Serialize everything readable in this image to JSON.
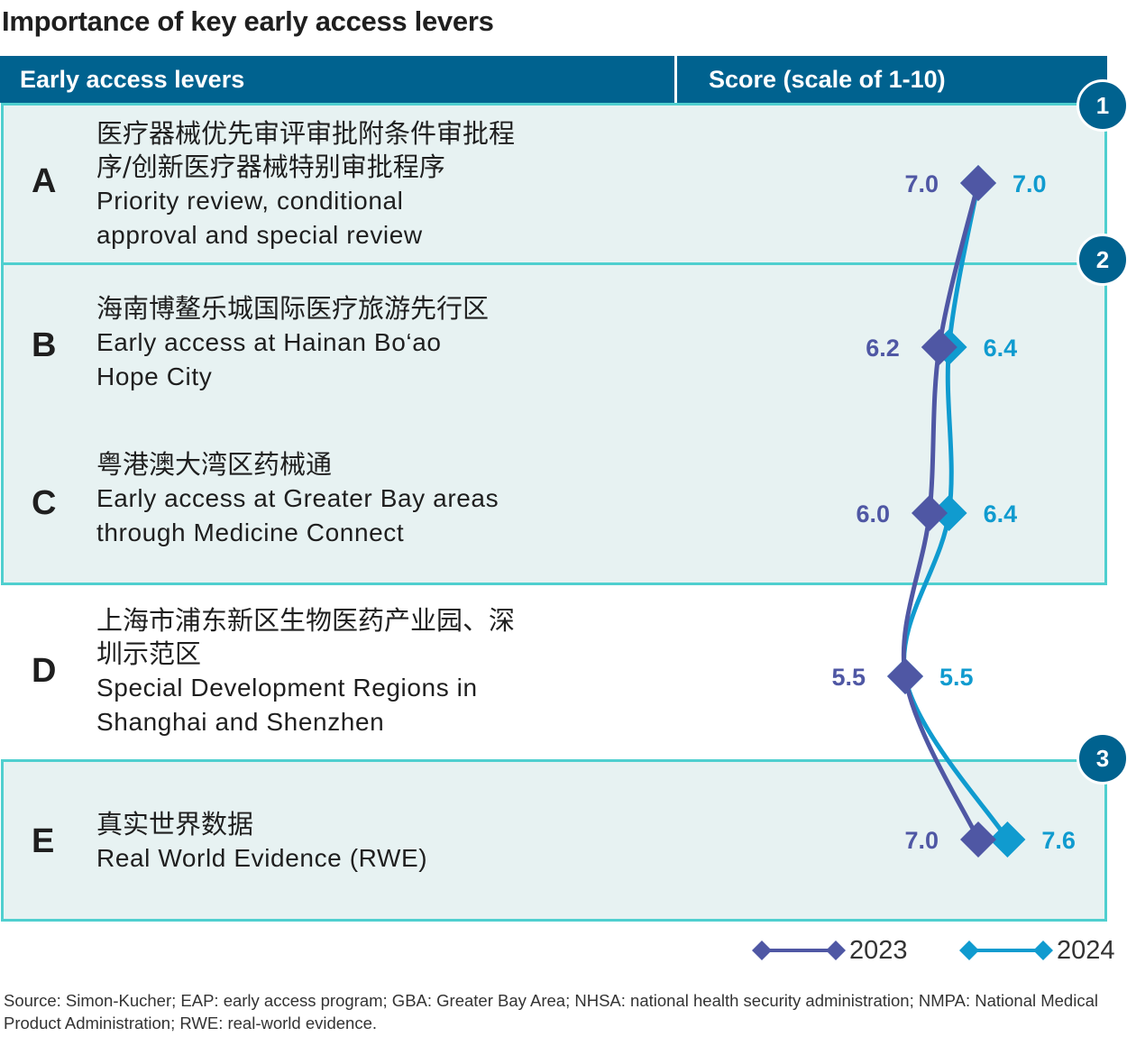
{
  "title": "Importance of key early access levers",
  "header": {
    "col1": "Early access levers",
    "col2": "Score (scale of 1-10)"
  },
  "badges": [
    "1",
    "2",
    "3"
  ],
  "rows": [
    {
      "letter": "A",
      "cn": "医疗器械优先审评审批附条件审批程序/创新医疗器械特别审批程序",
      "en": "Priority review, conditional approval and special review"
    },
    {
      "letter": "B",
      "cn": "海南博鳌乐城国际医疗旅游先行区",
      "en": "Early access at Hainan Bo‘ao Hope City"
    },
    {
      "letter": "C",
      "cn": "粤港澳大湾区药械通",
      "en": "Early access at Greater Bay areas through Medicine Connect"
    },
    {
      "letter": "D",
      "cn": "上海市浦东新区生物医药产业园、深圳示范区",
      "en": "Special Development Regions in Shanghai and Shenzhen"
    },
    {
      "letter": "E",
      "cn": "真实世界数据",
      "en": "Real World Evidence (RWE)"
    }
  ],
  "chart_data": {
    "type": "line",
    "orientation": "vertical-categories",
    "title": "Importance of key early access levers",
    "xlabel": "Score (scale of 1-10)",
    "categories": [
      "A",
      "B",
      "C",
      "D",
      "E"
    ],
    "series": [
      {
        "name": "2023",
        "values": [
          7.0,
          6.2,
          6.0,
          5.5,
          7.0
        ],
        "labels": [
          "7.0",
          "6.2",
          "6.0",
          "5.5",
          "7.0"
        ],
        "color": "#4f57a4"
      },
      {
        "name": "2024",
        "values": [
          7.0,
          6.4,
          6.4,
          5.5,
          7.6
        ],
        "labels": [
          "7.0",
          "6.4",
          "6.4",
          "5.5",
          "7.6"
        ],
        "color": "#109bcf"
      }
    ]
  },
  "legend": [
    "2023",
    "2024"
  ],
  "source": "Source: Simon-Kucher; EAP: early access program; GBA: Greater Bay Area; NHSA: national health security administration; NMPA: National Medical Product Administration; RWE: real-world evidence.",
  "colors": {
    "header": "#00628f",
    "band_fill": "#e7f2f2",
    "band_border": "#4fcfcf",
    "series_2023": "#4f57a4",
    "series_2024": "#109bcf"
  }
}
